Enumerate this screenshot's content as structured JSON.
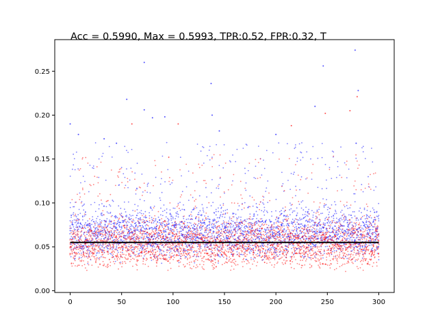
{
  "chart_data": {
    "type": "scatter",
    "title": "Acc = 0.5990, Max = 0.5993, TPR:0.52, FPR:0.32, T",
    "xlabel": "",
    "ylabel": "",
    "xlim": [
      -15,
      315
    ],
    "ylim": [
      -0.002,
      0.286
    ],
    "x_ticks": [
      0,
      50,
      100,
      150,
      200,
      250,
      300
    ],
    "y_ticks": [
      0.0,
      0.05,
      0.1,
      0.15,
      0.2,
      0.25
    ],
    "x_tick_labels": [
      "0",
      "50",
      "100",
      "150",
      "200",
      "250",
      "300"
    ],
    "y_tick_labels": [
      "0.00",
      "0.05",
      "0.10",
      "0.15",
      "0.20",
      "0.25"
    ],
    "grid": false,
    "series": [
      {
        "color": "#0000ff",
        "marker_alpha": 0.5,
        "x_range": [
          0,
          300
        ],
        "points_per_x": 10,
        "typical_range": [
          0.03,
          0.11
        ],
        "outliers": [
          [
            0,
            0.19
          ],
          [
            8,
            0.178
          ],
          [
            33,
            0.173
          ],
          [
            45,
            0.168
          ],
          [
            55,
            0.218
          ],
          [
            72,
            0.26
          ],
          [
            72,
            0.206
          ],
          [
            80,
            0.197
          ],
          [
            92,
            0.198
          ],
          [
            137,
            0.236
          ],
          [
            138,
            0.2
          ],
          [
            145,
            0.182
          ],
          [
            200,
            0.178
          ],
          [
            238,
            0.21
          ],
          [
            246,
            0.256
          ],
          [
            277,
            0.274
          ],
          [
            280,
            0.228
          ],
          [
            278,
            0.168
          ]
        ]
      },
      {
        "color": "#ff0000",
        "marker_alpha": 0.5,
        "x_range": [
          0,
          300
        ],
        "points_per_x": 10,
        "typical_range": [
          0.02,
          0.095
        ],
        "outliers": [
          [
            60,
            0.19
          ],
          [
            105,
            0.19
          ],
          [
            215,
            0.188
          ],
          [
            248,
            0.202
          ],
          [
            272,
            0.205
          ],
          [
            279,
            0.221
          ]
        ]
      }
    ],
    "reference_line": {
      "y": 0.055,
      "x_range": [
        0,
        300
      ],
      "color": "#000000"
    }
  }
}
